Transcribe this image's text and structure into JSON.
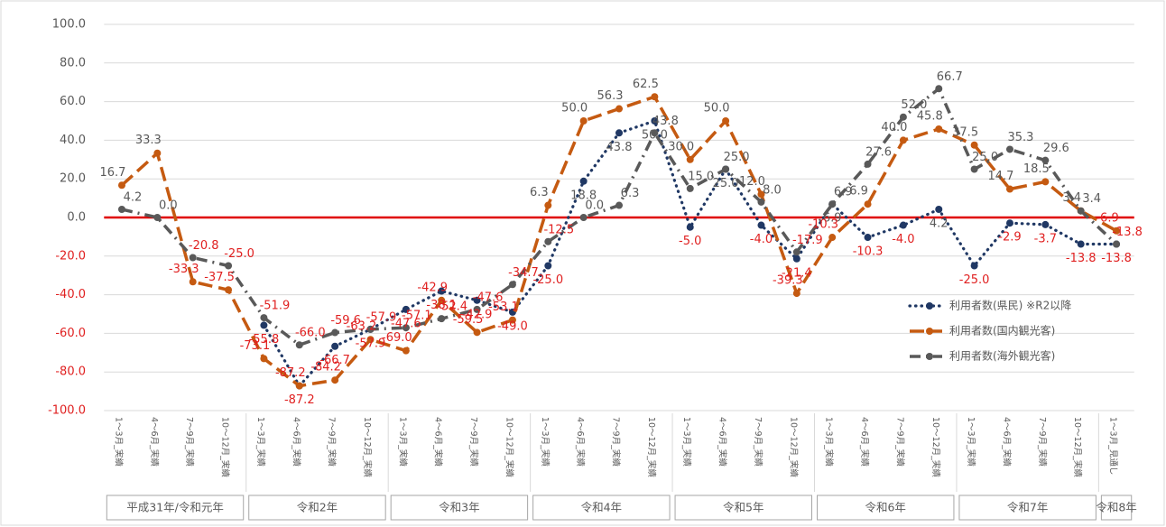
{
  "chart_data": {
    "type": "line",
    "categories": [
      "1～3月_実績",
      "4～6月_実績",
      "7～9月_実績",
      "10～12月_実績",
      "1～3月_実績",
      "4～6月_実績",
      "7～9月_実績",
      "10～12月_実績",
      "1～3月_実績",
      "4～6月_実績",
      "7～9月_実績",
      "10～12月_実績",
      "1～3月_実績",
      "4～6月_実績",
      "7～9月_実績",
      "10～12月_実績",
      "1～3月_実績",
      "4～6月_実績",
      "7～9月_実績",
      "10～12月_実績",
      "1～3月_実績",
      "4～6月_実績",
      "7～9月_実績",
      "10～12月_実績",
      "1～3月_実績",
      "4～6月_実績",
      "7～9月_実績",
      "10～12月_実績",
      "1～3月_見通し"
    ],
    "groups": [
      "平成31年/令和元年",
      "令和2年",
      "令和3年",
      "令和4年",
      "令和5年",
      "令和6年",
      "令和7年",
      "令和8年"
    ],
    "series": [
      {
        "name": "利用者数(県民) ※R2以降",
        "color": "#203864",
        "values": [
          null,
          null,
          null,
          null,
          -55.8,
          -87.2,
          -66.7,
          -57.9,
          -47.6,
          -38.1,
          -42.9,
          -49.0,
          -25.0,
          18.8,
          43.8,
          50.0,
          -5.0,
          25.0,
          -4.0,
          -21.4,
          6.9,
          -10.3,
          -4.0,
          4.2,
          -25.0,
          -2.9,
          -3.7,
          -13.8,
          -13.8
        ],
        "value_labels": [
          null,
          null,
          null,
          null,
          "-55.8",
          "-87.2",
          "-66.7",
          "-57.9",
          "-47.6",
          "-38.1",
          "-42.9",
          "-49.0",
          "-25.0",
          "18.8",
          "43.8",
          "50.0",
          "-5.0",
          "25.0",
          "-4.0",
          "-21.4",
          "6.9",
          "-10.3",
          "-4.0",
          "4.2",
          "-25.0",
          "-2.9",
          "-3.7",
          "-13.8",
          "-13.8"
        ]
      },
      {
        "name": "利用者数(国内観光客)",
        "color": "#c55a11",
        "values": [
          16.7,
          33.3,
          -33.3,
          -37.5,
          -73.1,
          -87.2,
          -84.2,
          -63.2,
          -69.0,
          -42.9,
          -59.5,
          -53.1,
          6.3,
          50.0,
          56.3,
          62.5,
          30.0,
          50.0,
          12.0,
          -39.3,
          -10.3,
          6.9,
          40.0,
          45.8,
          37.5,
          14.7,
          18.5,
          3.4,
          -6.9
        ],
        "value_labels": [
          "16.7",
          "33.3",
          "-33.3",
          "-37.5",
          "-73.1",
          "-87.2",
          "-84.2",
          "-63.2",
          "-69.0",
          "-42.9",
          "-59.5",
          "-53.1",
          "6.3",
          "50.0",
          "56.3",
          "62.5",
          "30.0",
          "50.0",
          "12.0",
          "-39.3",
          "-10.3",
          "6.9",
          "40.0",
          "45.8",
          "37.5",
          "14.7",
          "18.5",
          "3.4",
          "-6.9"
        ]
      },
      {
        "name": "利用者数(海外観光客)",
        "color": "#595959",
        "values": [
          4.2,
          0.0,
          -20.8,
          -25.0,
          -51.9,
          -66.0,
          -59.6,
          -57.9,
          -57.1,
          -52.4,
          -47.6,
          -34.7,
          -12.5,
          0.0,
          6.3,
          43.8,
          15.0,
          25.0,
          8.0,
          -17.9,
          6.9,
          27.6,
          52.0,
          66.7,
          25.0,
          35.3,
          29.6,
          3.4,
          -13.8
        ],
        "value_labels": [
          "4.2",
          "0.0",
          "-20.8",
          "-25.0",
          "-51.9",
          "-66.0",
          "-59.6",
          "-57.9",
          "-57.1",
          "-52.4",
          "-47.6",
          "-34.7",
          "-12.5",
          "0.0",
          "6.3",
          "43.8",
          "15.0",
          "25.0",
          "8.0",
          "-17.9",
          "6.9",
          "27.6",
          "52.0",
          "66.7",
          "25.0",
          "35.3",
          "29.6",
          "3.4",
          "-13.8"
        ]
      }
    ],
    "ylim": [
      -100,
      100
    ],
    "yticks": [
      {
        "value": -100,
        "label": "-100.0"
      },
      {
        "value": -80,
        "label": "-80.0"
      },
      {
        "value": -60,
        "label": "-60.0"
      },
      {
        "value": -40,
        "label": "-40.0"
      },
      {
        "value": -20,
        "label": "-20.0"
      },
      {
        "value": 0,
        "label": "0.0"
      },
      {
        "value": 20,
        "label": "20.0"
      },
      {
        "value": 40,
        "label": "40.0"
      },
      {
        "value": 60,
        "label": "60.0"
      },
      {
        "value": 80,
        "label": "80.0"
      },
      {
        "value": 100,
        "label": "100.0"
      }
    ],
    "grid": true,
    "zero_line_color": "#e00000",
    "negative_label_color": "#e02020",
    "legend": "right"
  }
}
